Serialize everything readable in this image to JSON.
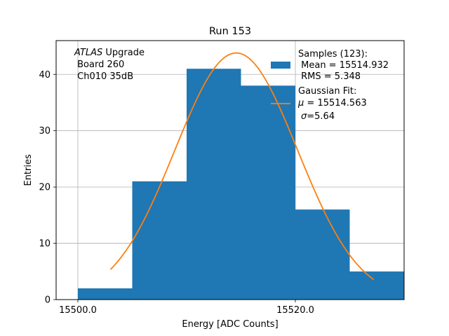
{
  "chart_data": {
    "type": "bar",
    "title": "Run 153",
    "xlabel": "Energy [ADC Counts]",
    "ylabel": "Entries",
    "xlim": [
      15498,
      15530
    ],
    "ylim": [
      0,
      46
    ],
    "x_ticks": [
      15500,
      15520
    ],
    "x_tick_labels": [
      "15500.0",
      "15520.0"
    ],
    "y_ticks": [
      0,
      10,
      20,
      30,
      40
    ],
    "grid": true,
    "histogram": {
      "bin_edges": [
        15500,
        15505,
        15510,
        15515,
        15520,
        15525,
        15530
      ],
      "counts": [
        2,
        21,
        41,
        38,
        16,
        5
      ],
      "color": "#1f77b4"
    },
    "fit": {
      "mu": 15514.563,
      "sigma": 5.64,
      "amplitude": 43.8,
      "x_range": [
        15503,
        15527.2
      ],
      "color": "#ff7f0e"
    },
    "annotation": {
      "italic": "ATLAS",
      "line1_rest": " Upgrade",
      "line2": " Board 260",
      "line3": " Ch010 35dB"
    },
    "legend": {
      "position": "top-right",
      "hist_lines": [
        "Samples (123):",
        " Mean = 15514.932",
        " RMS = 5.348"
      ],
      "fit_title": "Gaussian Fit:",
      "fit_mu_symbol": "μ",
      "fit_mu_rest": " = 15514.563",
      "fit_sigma_symbol": "σ",
      "fit_sigma_rest": "=5.64"
    }
  }
}
